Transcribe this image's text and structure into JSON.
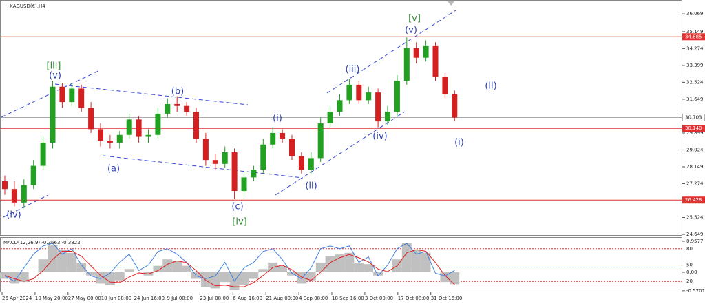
{
  "chart_data": {
    "type": "candlestick",
    "title": "XAGUSD(€),H4",
    "up_color": "#22a022",
    "down_color": "#d42020",
    "open": [
      27.4,
      27.0,
      26.3,
      27.2,
      28.2,
      29.4,
      32.3,
      31.5,
      32.2,
      31.2,
      30.1,
      29.5,
      29.4,
      29.8,
      30.6,
      29.7,
      29.8,
      30.9,
      31.4,
      31.3,
      31.0,
      29.6,
      28.5,
      28.3,
      28.9,
      26.9,
      27.6,
      28.0,
      29.3,
      29.9,
      29.6,
      28.7,
      28.0,
      28.6,
      30.4,
      31.0,
      31.6,
      32.4,
      31.6,
      32.0,
      30.5,
      31.0,
      32.6,
      34.3,
      33.8,
      34.4,
      32.8,
      31.9
    ],
    "high": [
      27.7,
      27.4,
      27.5,
      28.5,
      29.7,
      32.6,
      32.5,
      32.5,
      32.4,
      31.5,
      30.4,
      29.8,
      30.0,
      30.9,
      30.8,
      30.1,
      31.2,
      31.7,
      31.8,
      31.5,
      31.2,
      29.9,
      28.8,
      29.2,
      29.1,
      27.9,
      28.2,
      29.6,
      30.2,
      30.1,
      29.8,
      28.9,
      28.9,
      30.7,
      31.3,
      31.9,
      32.7,
      32.6,
      32.3,
      32.2,
      31.3,
      32.9,
      34.85,
      34.6,
      34.7,
      34.6,
      33.0,
      32.1
    ],
    "low": [
      26.7,
      26.1,
      26.0,
      27.0,
      28.0,
      29.1,
      31.2,
      31.3,
      31.0,
      29.9,
      29.2,
      29.1,
      29.1,
      29.6,
      29.4,
      29.4,
      29.6,
      30.7,
      31.0,
      30.8,
      29.4,
      28.2,
      28.0,
      28.1,
      26.5,
      26.6,
      27.4,
      27.8,
      29.1,
      29.4,
      28.5,
      27.8,
      27.8,
      28.4,
      30.2,
      30.8,
      31.4,
      31.4,
      31.4,
      30.2,
      30.3,
      30.8,
      32.4,
      33.5,
      33.6,
      32.6,
      31.7,
      30.5
    ],
    "close": [
      27.0,
      26.3,
      27.2,
      28.2,
      29.4,
      32.3,
      31.5,
      32.2,
      31.2,
      30.1,
      29.5,
      29.4,
      29.8,
      30.6,
      29.7,
      29.8,
      30.9,
      31.4,
      31.3,
      31.0,
      29.6,
      28.5,
      28.3,
      28.9,
      26.9,
      27.6,
      28.0,
      29.3,
      29.9,
      29.6,
      28.7,
      28.0,
      28.6,
      30.4,
      31.0,
      31.6,
      32.4,
      31.6,
      32.0,
      30.5,
      31.0,
      32.6,
      34.3,
      33.8,
      34.4,
      32.8,
      31.9,
      30.7
    ],
    "ylim": [
      24.58,
      36.68
    ],
    "yticks": [
      36.069,
      35.149,
      34.274,
      33.399,
      32.524,
      31.649,
      29.899,
      29.024,
      28.149,
      27.274,
      25.524,
      24.649
    ],
    "price_lines": [
      34.885,
      {
        "value": 30.14,
        "label": "30.140"
      },
      26.428
    ],
    "last_price": 30.703,
    "x_labels": [
      "26 Apr 2024",
      "10 May 20:00",
      "27 May 00:00",
      "10 Jun 08:00",
      "24 Jun 16:00",
      "9 Jul 00:00",
      "23 Jul 08:00",
      "6 Aug 16:00",
      "21 Aug 00:00",
      "4 Sep 08:00",
      "18 Sep 16:00",
      "3 Oct 00:00",
      "17 Oct 08:00",
      "31 Oct 16:00"
    ],
    "annotations": [
      {
        "text": "(iv)",
        "color": "#2a3fb0"
      },
      {
        "text": "(v)",
        "color": "#2a3fb0"
      },
      {
        "text": "[iii]",
        "color": "#2e8b2e"
      },
      {
        "text": "(a)",
        "color": "#2a3fb0"
      },
      {
        "text": "(b)",
        "color": "#2a3fb0"
      },
      {
        "text": "(i)",
        "color": "#2a3fb0"
      },
      {
        "text": "(c)",
        "color": "#2a3fb0"
      },
      {
        "text": "[iv]",
        "color": "#2e8b2e"
      },
      {
        "text": "(ii)",
        "color": "#2a3fb0"
      },
      {
        "text": "(iii)",
        "color": "#2a3fb0"
      },
      {
        "text": "(iv)",
        "color": "#2a3fb0"
      },
      {
        "text": "(v)",
        "color": "#2a3fb0"
      },
      {
        "text": "[v]",
        "color": "#2e8b2e"
      },
      {
        "text": "(ii)",
        "color": "#2a3fb0"
      },
      {
        "text": "(i)",
        "color": "#2a3fb0"
      }
    ],
    "macd": {
      "title": "MACD(12,26,9) -0.3663 -0.3822",
      "histogram": [
        -0.2,
        -0.35,
        -0.3,
        0.0,
        0.4,
        0.85,
        0.7,
        0.6,
        0.3,
        -0.1,
        -0.35,
        -0.4,
        -0.25,
        0.1,
        0.0,
        -0.1,
        0.2,
        0.4,
        0.35,
        0.2,
        -0.2,
        -0.45,
        -0.5,
        -0.3,
        -0.55,
        -0.4,
        -0.2,
        0.1,
        0.3,
        0.2,
        -0.1,
        -0.35,
        -0.25,
        0.3,
        0.5,
        0.55,
        0.6,
        0.3,
        0.25,
        -0.1,
        0.0,
        0.4,
        0.9,
        0.7,
        0.6,
        0.0,
        -0.3,
        -0.37
      ],
      "signal": [
        -0.1,
        -0.2,
        -0.28,
        -0.2,
        0.05,
        0.4,
        0.65,
        0.65,
        0.5,
        0.2,
        -0.1,
        -0.3,
        -0.32,
        -0.15,
        -0.02,
        -0.05,
        0.05,
        0.25,
        0.35,
        0.3,
        0.05,
        -0.25,
        -0.42,
        -0.4,
        -0.45,
        -0.45,
        -0.32,
        -0.1,
        0.15,
        0.22,
        0.08,
        -0.15,
        -0.25,
        0.0,
        0.3,
        0.45,
        0.55,
        0.45,
        0.32,
        0.1,
        0.02,
        0.2,
        0.6,
        0.7,
        0.65,
        0.3,
        -0.1,
        -0.38
      ],
      "oscillator": [
        30,
        20,
        45,
        70,
        85,
        90,
        70,
        80,
        50,
        30,
        25,
        35,
        55,
        70,
        40,
        50,
        75,
        80,
        70,
        55,
        30,
        25,
        30,
        55,
        20,
        45,
        55,
        75,
        80,
        60,
        35,
        25,
        45,
        80,
        85,
        80,
        85,
        55,
        65,
        30,
        50,
        80,
        90,
        70,
        75,
        35,
        30,
        40
      ],
      "ylim": [
        -0.617,
        1.064
      ],
      "yticks": [
        0.9577,
        {
          "value": 0,
          "label": "0.00"
        },
        -0.5701
      ],
      "y2lim": [
        0,
        100
      ],
      "y2ticks": [
        80,
        50,
        20
      ]
    }
  }
}
